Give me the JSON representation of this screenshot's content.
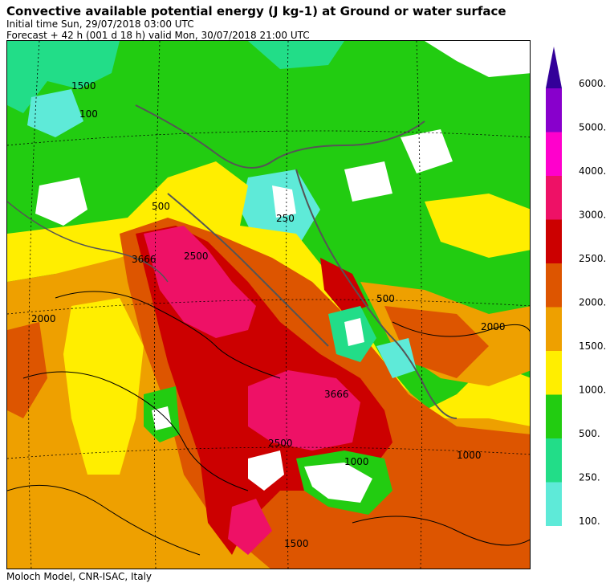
{
  "header": {
    "title": "Convective available potential energy (J kg-1) at Ground or water surface",
    "initial_time": "Initial time  Sun, 29/07/2018  03:00 UTC",
    "forecast": "Forecast  +  42 h  (001 d 18 h)  valid Mon, 30/07/2018 21:00 UTC"
  },
  "footer": {
    "credit": "Moloch Model, CNR-ISAC, Italy"
  },
  "legend": {
    "levels": [
      {
        "label": "100.",
        "color": "#5eead8"
      },
      {
        "label": "250.",
        "color": "#22dd88"
      },
      {
        "label": "500.",
        "color": "#22cc11"
      },
      {
        "label": "1000.",
        "color": "#ffee00"
      },
      {
        "label": "1500.",
        "color": "#eea000"
      },
      {
        "label": "2000.",
        "color": "#dd5500"
      },
      {
        "label": "2500.",
        "color": "#cc0000"
      },
      {
        "label": "3000.",
        "color": "#ee1166"
      },
      {
        "label": "4000.",
        "color": "#ff00cc"
      },
      {
        "label": "5000.",
        "color": "#8800cc"
      },
      {
        "label": "6000.",
        "color": "#330099"
      }
    ]
  },
  "contour_labels": [
    "3666",
    "3666",
    "2000",
    "2500",
    "500",
    "1000",
    "1500",
    "100",
    "250",
    "2000",
    "2500",
    "1500",
    "1000",
    "500"
  ]
}
